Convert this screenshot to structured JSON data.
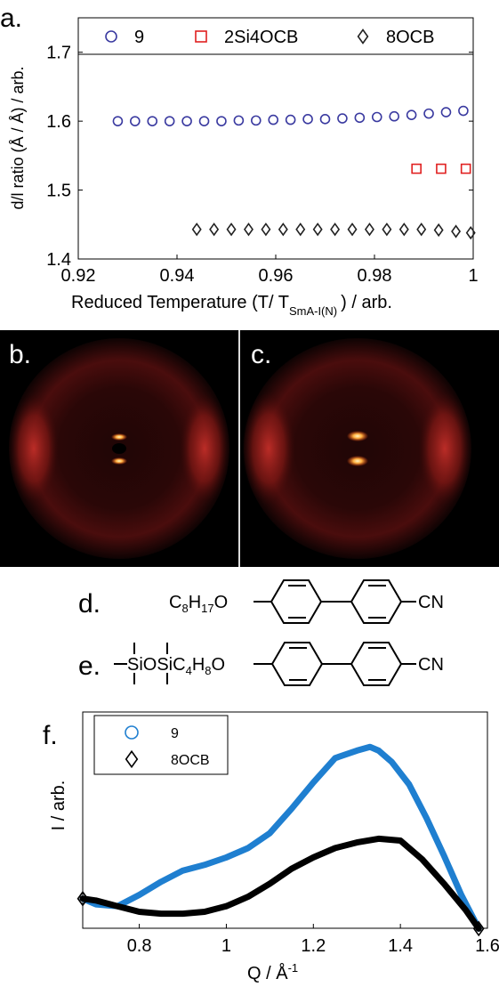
{
  "chart_data": [
    {
      "panel": "a.",
      "type": "scatter",
      "xlabel": "Reduced Temperature (T/ T",
      "xlabel_sub": "SmA-I(N)",
      "xlabel_tail": ") / arb.",
      "ylabel": "d/l ratio (Å / Å) / arb.",
      "xlim": [
        0.92,
        1.0
      ],
      "ylim": [
        1.4,
        1.75
      ],
      "xticks": [
        "0.92",
        "0.94",
        "0.96",
        "0.98",
        "1"
      ],
      "xtick_values": [
        0.92,
        0.94,
        0.96,
        0.98,
        1.0
      ],
      "yticks": [
        "1.4",
        "1.5",
        "1.6",
        "1.7"
      ],
      "ytick_values": [
        1.4,
        1.5,
        1.6,
        1.7
      ],
      "legend_position": "top",
      "series": [
        {
          "name": "9",
          "marker": "circle",
          "color": "#3a3aa0",
          "x": [
            0.928,
            0.9315,
            0.935,
            0.9385,
            0.942,
            0.9455,
            0.949,
            0.9525,
            0.956,
            0.9595,
            0.963,
            0.9665,
            0.97,
            0.9735,
            0.977,
            0.9805,
            0.984,
            0.9875,
            0.991,
            0.9945,
            0.998
          ],
          "y": [
            1.6,
            1.6,
            1.6,
            1.6,
            1.6,
            1.6,
            1.6,
            1.601,
            1.601,
            1.602,
            1.602,
            1.603,
            1.603,
            1.604,
            1.605,
            1.606,
            1.607,
            1.609,
            1.611,
            1.613,
            1.615
          ]
        },
        {
          "name": "2Si4OCB",
          "marker": "square",
          "color": "#e02020",
          "x": [
            0.9885,
            0.9935,
            0.9985
          ],
          "y": [
            1.531,
            1.531,
            1.531
          ]
        },
        {
          "name": "8OCB",
          "marker": "diamond",
          "color": "#222222",
          "x": [
            0.944,
            0.9475,
            0.951,
            0.9545,
            0.958,
            0.9615,
            0.965,
            0.9685,
            0.972,
            0.9755,
            0.979,
            0.9825,
            0.986,
            0.9895,
            0.993,
            0.9965,
            0.9995
          ],
          "y": [
            1.443,
            1.443,
            1.443,
            1.443,
            1.443,
            1.443,
            1.443,
            1.443,
            1.443,
            1.443,
            1.443,
            1.443,
            1.443,
            1.443,
            1.442,
            1.44,
            1.438
          ]
        }
      ]
    },
    {
      "panel": "f.",
      "type": "line",
      "xlabel": "Q / Å",
      "xlabel_sup": "-1",
      "ylabel": "I / arb.",
      "xlim": [
        0.67,
        1.6
      ],
      "ylim": [
        0,
        1
      ],
      "xticks": [
        "0.8",
        "1",
        "1.2",
        "1.4",
        "1.6"
      ],
      "xtick_values": [
        0.8,
        1.0,
        1.2,
        1.4,
        1.6
      ],
      "legend_position": "top-left",
      "series": [
        {
          "name": "9",
          "marker": "circle",
          "color": "#1f7fd0",
          "x": [
            0.67,
            0.7,
            0.75,
            0.8,
            0.85,
            0.9,
            0.95,
            1.0,
            1.05,
            1.1,
            1.15,
            1.2,
            1.25,
            1.3,
            1.33,
            1.35,
            1.38,
            1.42,
            1.46,
            1.5,
            1.54,
            1.58
          ],
          "y": [
            0.12,
            0.09,
            0.08,
            0.14,
            0.21,
            0.27,
            0.3,
            0.34,
            0.39,
            0.47,
            0.6,
            0.74,
            0.87,
            0.91,
            0.93,
            0.91,
            0.85,
            0.73,
            0.55,
            0.35,
            0.14,
            -0.04
          ]
        },
        {
          "name": "8OCB",
          "marker": "diamond",
          "color": "#000000",
          "x": [
            0.67,
            0.7,
            0.75,
            0.8,
            0.85,
            0.9,
            0.95,
            1.0,
            1.05,
            1.1,
            1.15,
            1.2,
            1.25,
            1.3,
            1.35,
            1.4,
            1.45,
            1.5,
            1.55,
            1.58
          ],
          "y": [
            0.12,
            0.11,
            0.08,
            0.05,
            0.04,
            0.04,
            0.05,
            0.08,
            0.13,
            0.2,
            0.28,
            0.34,
            0.39,
            0.42,
            0.44,
            0.43,
            0.33,
            0.2,
            0.06,
            -0.04
          ]
        }
      ]
    }
  ],
  "images": {
    "panel_b": {
      "label": "b."
    },
    "panel_c": {
      "label": "c."
    }
  },
  "structures": {
    "d": {
      "label": "d.",
      "chain": "C8H17O",
      "terminal": "CN"
    },
    "e": {
      "label": "e.",
      "chain": "SiOSiC4H8O",
      "terminal": "CN"
    }
  }
}
